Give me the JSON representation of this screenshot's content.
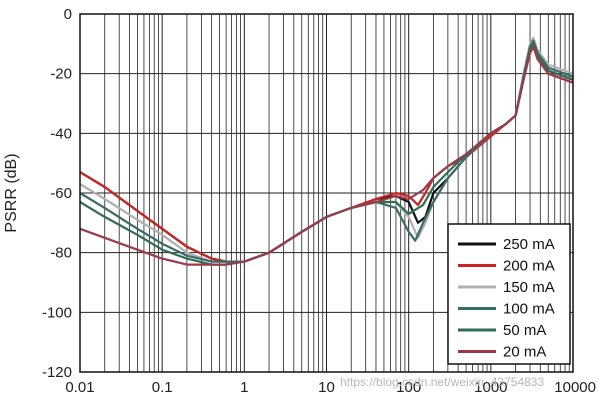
{
  "chart_data": {
    "type": "line",
    "title": "",
    "xlabel": "",
    "ylabel": "PSRR (dB)",
    "xscale": "log",
    "xlim": [
      0.01,
      10000
    ],
    "ylim": [
      -120,
      0
    ],
    "xticks": [
      "0.01",
      "0.1",
      "1",
      "10",
      "100",
      "1000",
      "10000"
    ],
    "yticks": [
      "0",
      "-20",
      "-40",
      "-60",
      "-80",
      "-100",
      "-120"
    ],
    "grid": true,
    "legend_position": "bottom-right",
    "series": [
      {
        "name": "250 mA",
        "color": "#111111",
        "points": [
          [
            0.01,
            -53
          ],
          [
            0.02,
            -58
          ],
          [
            0.05,
            -66
          ],
          [
            0.1,
            -72
          ],
          [
            0.2,
            -78
          ],
          [
            0.4,
            -82
          ],
          [
            0.6,
            -83
          ],
          [
            1,
            -83
          ],
          [
            2,
            -80
          ],
          [
            5,
            -73
          ],
          [
            10,
            -68
          ],
          [
            20,
            -65
          ],
          [
            40,
            -62
          ],
          [
            70,
            -61
          ],
          [
            100,
            -63
          ],
          [
            130,
            -70
          ],
          [
            160,
            -68
          ],
          [
            200,
            -60
          ],
          [
            300,
            -55
          ],
          [
            500,
            -48
          ],
          [
            1000,
            -40
          ],
          [
            1500,
            -37
          ],
          [
            2000,
            -34
          ],
          [
            2500,
            -22
          ],
          [
            3000,
            -12
          ],
          [
            3300,
            -10
          ],
          [
            3700,
            -14
          ],
          [
            5000,
            -19
          ],
          [
            10000,
            -22
          ]
        ]
      },
      {
        "name": "200 mA",
        "color": "#cc2222",
        "points": [
          [
            0.01,
            -53
          ],
          [
            0.02,
            -58
          ],
          [
            0.05,
            -66
          ],
          [
            0.1,
            -72
          ],
          [
            0.2,
            -78
          ],
          [
            0.4,
            -82
          ],
          [
            0.6,
            -83
          ],
          [
            1,
            -83
          ],
          [
            2,
            -80
          ],
          [
            5,
            -73
          ],
          [
            10,
            -68
          ],
          [
            20,
            -65
          ],
          [
            40,
            -62
          ],
          [
            70,
            -60
          ],
          [
            100,
            -61
          ],
          [
            130,
            -64
          ],
          [
            160,
            -60
          ],
          [
            200,
            -55
          ],
          [
            300,
            -51
          ],
          [
            500,
            -48
          ],
          [
            1000,
            -41
          ],
          [
            1500,
            -37
          ],
          [
            2000,
            -34
          ],
          [
            2500,
            -22
          ],
          [
            3000,
            -13
          ],
          [
            3300,
            -11
          ],
          [
            3700,
            -15
          ],
          [
            5000,
            -20
          ],
          [
            10000,
            -23
          ]
        ]
      },
      {
        "name": "150 mA",
        "color": "#b0b0b0",
        "points": [
          [
            0.01,
            -57
          ],
          [
            0.02,
            -62
          ],
          [
            0.05,
            -69
          ],
          [
            0.1,
            -74
          ],
          [
            0.2,
            -80
          ],
          [
            0.4,
            -83
          ],
          [
            0.6,
            -83
          ],
          [
            1,
            -83
          ],
          [
            2,
            -80
          ],
          [
            5,
            -73
          ],
          [
            10,
            -68
          ],
          [
            20,
            -65
          ],
          [
            40,
            -63
          ],
          [
            70,
            -63
          ],
          [
            100,
            -68
          ],
          [
            130,
            -75
          ],
          [
            160,
            -70
          ],
          [
            200,
            -63
          ],
          [
            300,
            -55
          ],
          [
            500,
            -48
          ],
          [
            1000,
            -40
          ],
          [
            1500,
            -37
          ],
          [
            2000,
            -34
          ],
          [
            2500,
            -20
          ],
          [
            3000,
            -10
          ],
          [
            3300,
            -8
          ],
          [
            3700,
            -12
          ],
          [
            5000,
            -17
          ],
          [
            10000,
            -20
          ]
        ]
      },
      {
        "name": "100 mA",
        "color": "#3a6b6b",
        "points": [
          [
            0.01,
            -60
          ],
          [
            0.02,
            -65
          ],
          [
            0.05,
            -72
          ],
          [
            0.1,
            -77
          ],
          [
            0.2,
            -81
          ],
          [
            0.4,
            -83
          ],
          [
            0.6,
            -83
          ],
          [
            1,
            -83
          ],
          [
            2,
            -80
          ],
          [
            5,
            -73
          ],
          [
            10,
            -68
          ],
          [
            20,
            -65
          ],
          [
            40,
            -63
          ],
          [
            70,
            -65
          ],
          [
            100,
            -73
          ],
          [
            120,
            -76
          ],
          [
            150,
            -70
          ],
          [
            200,
            -63
          ],
          [
            300,
            -55
          ],
          [
            500,
            -48
          ],
          [
            1000,
            -40
          ],
          [
            1500,
            -37
          ],
          [
            2000,
            -34
          ],
          [
            2500,
            -21
          ],
          [
            3000,
            -11
          ],
          [
            3300,
            -9
          ],
          [
            3700,
            -13
          ],
          [
            5000,
            -18
          ],
          [
            10000,
            -21
          ]
        ]
      },
      {
        "name": "50 mA",
        "color": "#2f6e50",
        "points": [
          [
            0.01,
            -63
          ],
          [
            0.02,
            -68
          ],
          [
            0.05,
            -74
          ],
          [
            0.1,
            -79
          ],
          [
            0.2,
            -82
          ],
          [
            0.4,
            -84
          ],
          [
            0.6,
            -84
          ],
          [
            1,
            -83
          ],
          [
            2,
            -80
          ],
          [
            5,
            -73
          ],
          [
            10,
            -68
          ],
          [
            20,
            -65
          ],
          [
            40,
            -63
          ],
          [
            70,
            -63
          ],
          [
            100,
            -67
          ],
          [
            150,
            -64
          ],
          [
            200,
            -58
          ],
          [
            300,
            -53
          ],
          [
            500,
            -47
          ],
          [
            1000,
            -40
          ],
          [
            1500,
            -37
          ],
          [
            2000,
            -34
          ],
          [
            2500,
            -22
          ],
          [
            3000,
            -12
          ],
          [
            3300,
            -10
          ],
          [
            3700,
            -14
          ],
          [
            5000,
            -19
          ],
          [
            10000,
            -22
          ]
        ]
      },
      {
        "name": "20 mA",
        "color": "#9a3a4a",
        "points": [
          [
            0.01,
            -72
          ],
          [
            0.02,
            -75
          ],
          [
            0.05,
            -79
          ],
          [
            0.1,
            -82
          ],
          [
            0.2,
            -84
          ],
          [
            0.4,
            -84
          ],
          [
            0.6,
            -84
          ],
          [
            1,
            -83
          ],
          [
            2,
            -80
          ],
          [
            5,
            -73
          ],
          [
            10,
            -68
          ],
          [
            20,
            -65
          ],
          [
            40,
            -63
          ],
          [
            70,
            -61
          ],
          [
            100,
            -62
          ],
          [
            150,
            -59
          ],
          [
            200,
            -55
          ],
          [
            300,
            -51
          ],
          [
            500,
            -47
          ],
          [
            1000,
            -40
          ],
          [
            1500,
            -37
          ],
          [
            2000,
            -34
          ],
          [
            2500,
            -22
          ],
          [
            3000,
            -13
          ],
          [
            3300,
            -11
          ],
          [
            3700,
            -15
          ],
          [
            5000,
            -20
          ],
          [
            10000,
            -23
          ]
        ]
      }
    ]
  },
  "watermark": "https://blog.csdn.net/weixin_43754833"
}
